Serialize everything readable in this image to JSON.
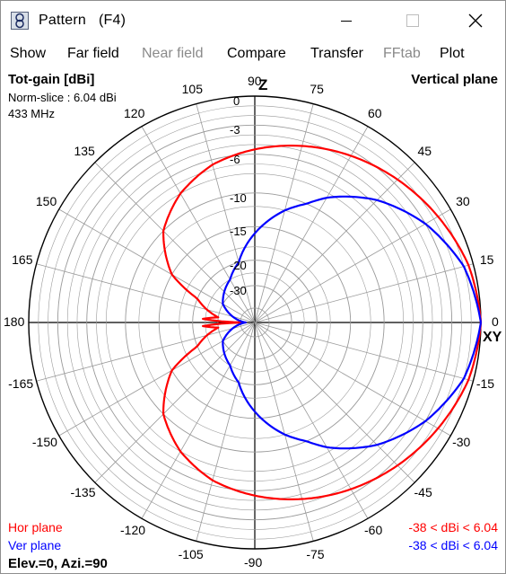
{
  "window": {
    "title": "Pattern",
    "shortcut": "(F4)",
    "icon": "pattern-app-icon"
  },
  "menu": {
    "items": [
      {
        "label": "Show",
        "enabled": true
      },
      {
        "label": "Far field",
        "enabled": true
      },
      {
        "label": "Near field",
        "enabled": false
      },
      {
        "label": "Compare",
        "enabled": true
      },
      {
        "label": "Transfer",
        "enabled": true
      },
      {
        "label": "FFtab",
        "enabled": false
      },
      {
        "label": "Plot",
        "enabled": true
      }
    ]
  },
  "plot": {
    "gain_title": "Tot-gain [dBi]",
    "norm_slice": "Norm-slice : 6.04 dBi",
    "frequency": "433 MHz",
    "plane": "Vertical plane",
    "z_label": "Z",
    "xy_label": "XY",
    "legend": {
      "hor": "Hor plane",
      "ver": "Ver plane",
      "hor_range": "-38 < dBi < 6.04",
      "ver_range": "-38 < dBi < 6.04"
    },
    "elev_azi": "Elev.=0, Azi.=90",
    "colors": {
      "hor": "#ff0000",
      "ver": "#0000ff",
      "grid": "#9a9a9a",
      "axis": "#000000"
    }
  },
  "chart_data": {
    "type": "polar",
    "angle_ticks": [
      "90",
      "75",
      "60",
      "45",
      "30",
      "15",
      "0",
      "-15",
      "-30",
      "-45",
      "-60",
      "-75",
      "-90",
      "-105",
      "-120",
      "-135",
      "-150",
      "-165",
      "180",
      "165",
      "150",
      "135",
      "120",
      "105"
    ],
    "radial_ticks": [
      "0",
      "-3",
      "-6",
      "-10",
      "-15",
      "-20",
      "-30"
    ],
    "radial_unit": "dB below max (6.04 dBi)",
    "series": [
      {
        "name": "Hor plane",
        "angles_deg": [
          0,
          15,
          30,
          45,
          60,
          75,
          90,
          105,
          120,
          135,
          150,
          165,
          172,
          176,
          180,
          184,
          188,
          195,
          210,
          225,
          240,
          255,
          270,
          285,
          300,
          315,
          330,
          345
        ],
        "values_db": [
          0,
          -0.5,
          -1.5,
          -2.5,
          -3.5,
          -4.5,
          -5.5,
          -6.5,
          -8,
          -10,
          -15,
          -25,
          -30,
          -24,
          -38,
          -24,
          -30,
          -25,
          -15,
          -10,
          -8,
          -6.5,
          -5.5,
          -4.5,
          -3.5,
          -2.5,
          -1.5,
          -0.5
        ]
      },
      {
        "name": "Ver plane",
        "angles_deg": [
          0,
          15,
          30,
          45,
          60,
          75,
          90,
          105,
          120,
          150,
          180,
          210,
          240,
          255,
          270,
          285,
          300,
          315,
          330,
          345
        ],
        "values_db": [
          0,
          -1,
          -3,
          -5.5,
          -8.5,
          -12,
          -16,
          -20,
          -25,
          -30,
          -38,
          -30,
          -25,
          -20,
          -16,
          -12,
          -8.5,
          -5.5,
          -3,
          -1
        ]
      }
    ]
  }
}
